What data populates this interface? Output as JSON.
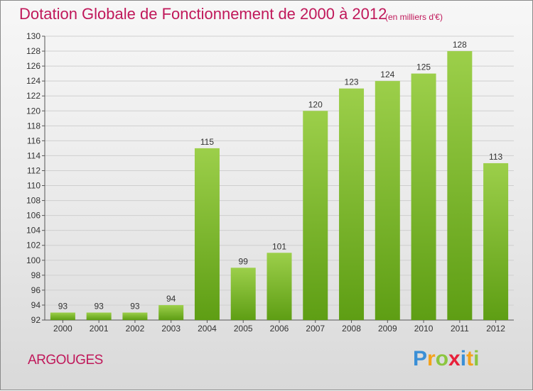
{
  "header": {
    "title": "Dotation Globale de Fonctionnement de 2000 à 2012",
    "subtitle": "(en milliers d'€)"
  },
  "town": "ARGOUGES",
  "logo": {
    "letters": [
      {
        "char": "P",
        "color": "#3a8fd6"
      },
      {
        "char": "r",
        "color": "#f3a21a"
      },
      {
        "char": "o",
        "color": "#8cc63f"
      },
      {
        "char": "x",
        "color": "#e8203a"
      },
      {
        "char": "i",
        "color": "#3a8fd6"
      },
      {
        "char": "t",
        "color": "#f3a21a"
      },
      {
        "char": "i",
        "color": "#8cc63f"
      }
    ]
  },
  "colors": {
    "accent": "#c0185a",
    "bar_light": "#9ccf4a",
    "bar_dark": "#5e9e14",
    "grid": "#cfcfcf"
  },
  "chart_data": {
    "type": "bar",
    "title": "Dotation Globale de Fonctionnement de 2000 à 2012",
    "subtitle": "(en milliers d'€)",
    "xlabel": "",
    "ylabel": "",
    "categories": [
      "2000",
      "2001",
      "2002",
      "2003",
      "2004",
      "2005",
      "2006",
      "2007",
      "2008",
      "2009",
      "2010",
      "2011",
      "2012"
    ],
    "values": [
      93,
      93,
      93,
      94,
      115,
      99,
      101,
      120,
      123,
      124,
      125,
      128,
      113
    ],
    "ylim": [
      92,
      130
    ],
    "yticks": [
      92,
      94,
      96,
      98,
      100,
      102,
      104,
      106,
      108,
      110,
      112,
      114,
      116,
      118,
      120,
      122,
      124,
      126,
      128,
      130
    ],
    "grid": true,
    "legend": "none"
  }
}
